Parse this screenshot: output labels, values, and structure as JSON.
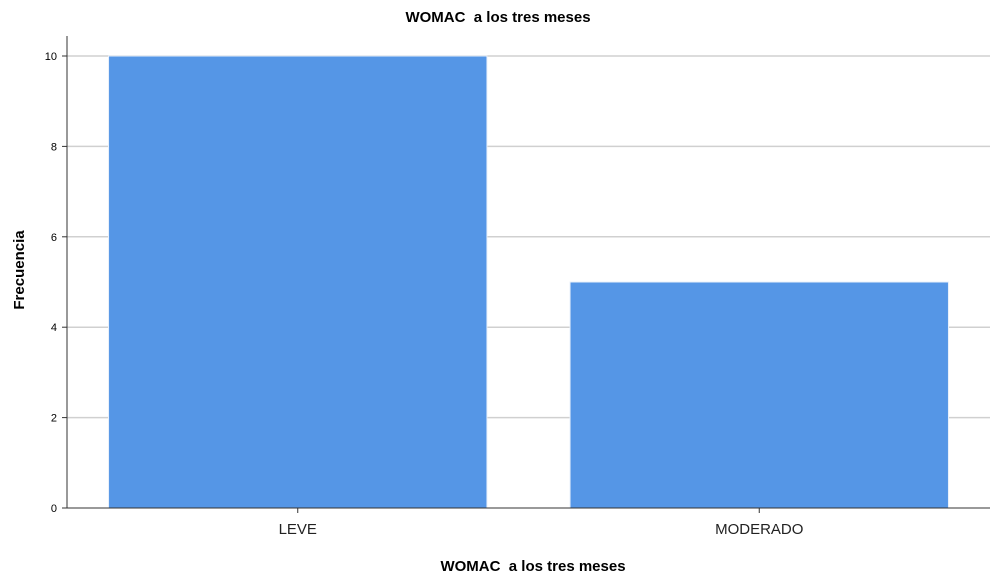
{
  "chart_data": {
    "type": "bar",
    "title": "WOMAC  a los tres meses",
    "xlabel": "WOMAC  a los tres meses",
    "ylabel": "Frecuencia",
    "categories": [
      "LEVE",
      "MODERADO"
    ],
    "values": [
      10,
      5
    ],
    "ylim": [
      0,
      10
    ],
    "yticks": [
      0,
      2,
      4,
      6,
      8,
      10
    ],
    "grid": true,
    "bar_color": "#5596e6",
    "grid_color": "#d0d0d0"
  }
}
